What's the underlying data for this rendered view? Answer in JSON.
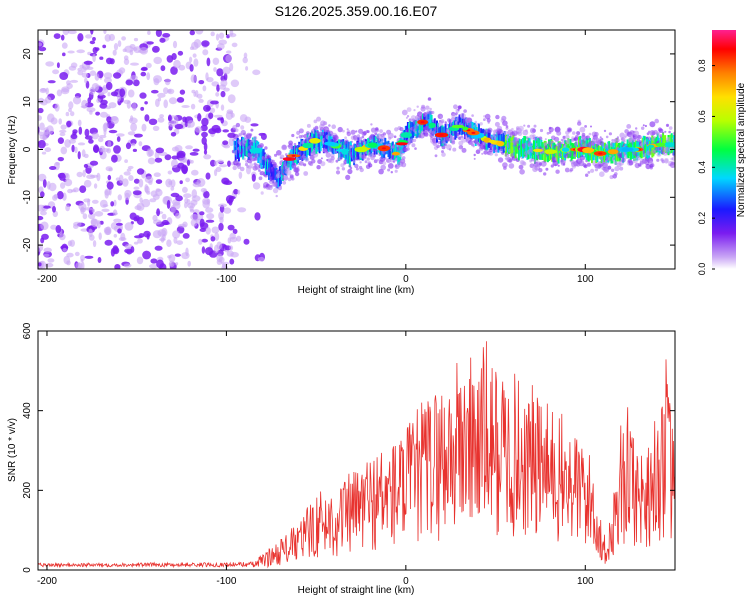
{
  "figure": {
    "title": "S126.2025.359.00.16.E07"
  },
  "chart_data": [
    {
      "type": "heatmap",
      "xlabel": "Height of straight line (km)",
      "ylabel": "Frequency (Hz)",
      "xlim": [
        -205,
        150
      ],
      "ylim": [
        -25,
        25
      ],
      "xticks": [
        -200,
        -100,
        0,
        100
      ],
      "yticks": [
        -20,
        -10,
        0,
        10,
        20
      ],
      "ridge": {
        "description_points_x": [
          -95,
          -85,
          -78,
          -72,
          -65,
          -58,
          -50,
          -40,
          -32,
          -25,
          -18,
          -10,
          -5,
          0,
          5,
          10,
          15,
          20,
          25,
          30,
          35,
          40,
          45,
          55,
          60,
          70,
          80,
          90,
          100,
          110,
          120,
          130,
          140,
          150
        ],
        "description_points_y": [
          0,
          0.5,
          -3,
          -6,
          -2,
          0,
          2,
          1,
          -1,
          0,
          1,
          0,
          -1,
          3,
          4,
          6,
          5,
          3,
          4,
          5,
          4,
          3,
          2,
          1,
          0.5,
          0,
          -0.5,
          0,
          0,
          -1,
          0,
          0,
          1,
          1
        ]
      },
      "noise_region_x": [
        -205,
        -95
      ],
      "colorbar": {
        "label": "Normalized spectral amplitude",
        "range": [
          0.0,
          0.9
        ],
        "ticks": [
          0.0,
          0.2,
          0.4,
          0.6,
          0.8
        ],
        "tick_labels": [
          "0.0",
          "0.2",
          "0.4",
          "0.6",
          "0.8"
        ]
      }
    },
    {
      "type": "line",
      "xlabel": "Height of straight line (km)",
      "ylabel": "SNR (10 * v/v)",
      "xlim": [
        -205,
        150
      ],
      "ylim": [
        0,
        600
      ],
      "xticks": [
        -200,
        -100,
        0,
        100
      ],
      "yticks": [
        0,
        200,
        400,
        600
      ],
      "color": "#e8322e",
      "envelope_x": [
        -205,
        -100,
        -85,
        -75,
        -60,
        -50,
        -40,
        -30,
        -20,
        -10,
        0,
        10,
        20,
        30,
        40,
        45,
        50,
        60,
        70,
        80,
        90,
        100,
        105,
        108,
        112,
        120,
        125,
        130,
        140,
        145,
        150
      ],
      "envelope_y": [
        15,
        18,
        22,
        60,
        120,
        200,
        210,
        250,
        300,
        320,
        360,
        440,
        480,
        540,
        560,
        580,
        520,
        500,
        470,
        420,
        380,
        330,
        260,
        150,
        60,
        380,
        420,
        300,
        400,
        540,
        300
      ]
    }
  ],
  "colors": {
    "axis": "#000000",
    "snr_line": "#e8322e",
    "noise_dots": "#7a1cf0",
    "noise_light": "#c9a6f5"
  }
}
